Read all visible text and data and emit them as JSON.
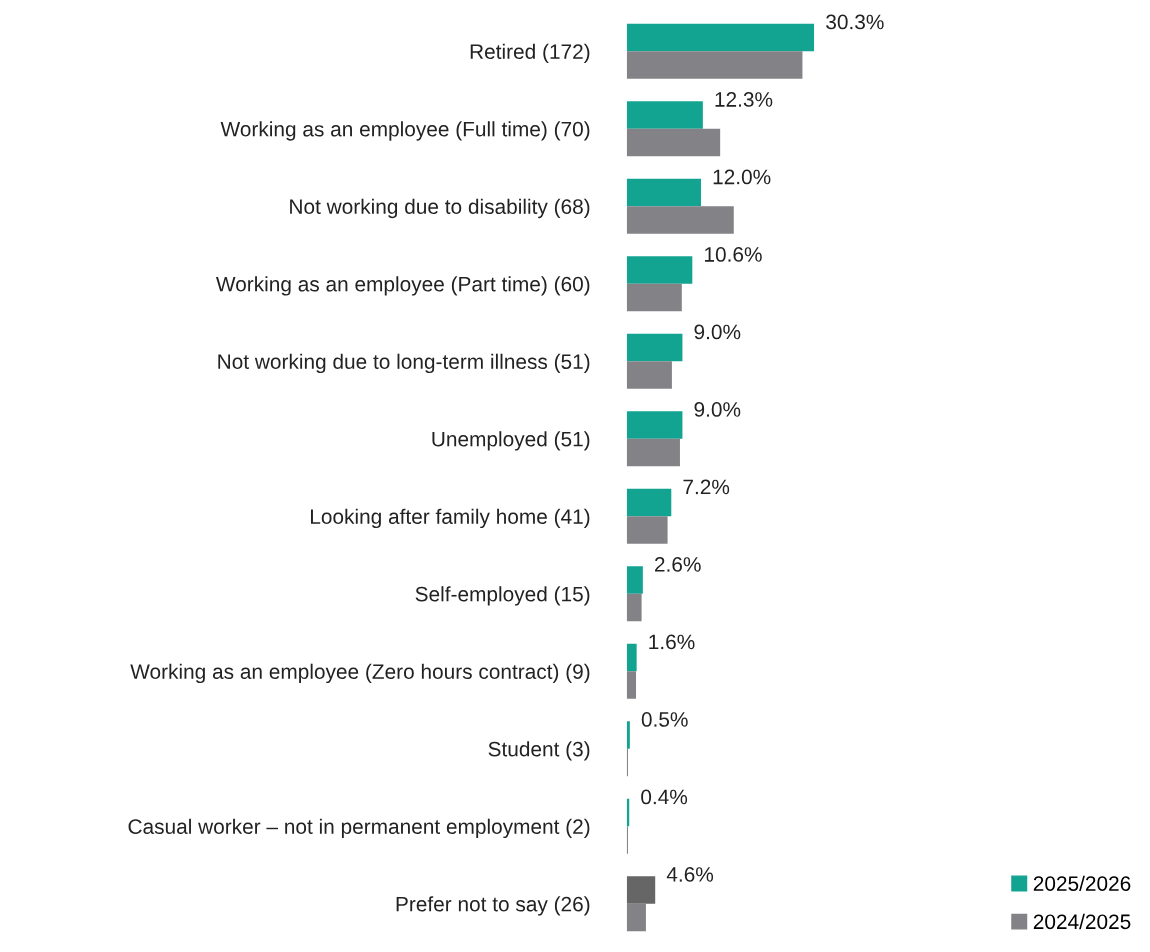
{
  "chart_data": {
    "type": "bar",
    "orientation": "horizontal",
    "categories": [
      "Retired (172)",
      "Working as an employee (Full time) (70)",
      "Not working due to disability (68)",
      "Working as an employee (Part time) (60)",
      "Not working due to long-term illness (51)",
      "Unemployed (51)",
      "Looking after family home (41)",
      "Self-employed (15)",
      "Working as an employee (Zero hours contract) (9)",
      "Student (3)",
      "Casual worker – not in permanent employment (2)",
      "Prefer not to say (26)"
    ],
    "series": [
      {
        "name": "2025/2026",
        "color": "#12a391",
        "colors": [
          "#12a391",
          "#12a391",
          "#12a391",
          "#12a391",
          "#12a391",
          "#12a391",
          "#12a391",
          "#12a391",
          "#12a391",
          "#12a391",
          "#12a391",
          "#666666"
        ],
        "values": [
          30.3,
          12.3,
          12.0,
          10.6,
          9.0,
          9.0,
          7.2,
          2.6,
          1.6,
          0.5,
          0.4,
          4.6
        ],
        "value_labels": [
          "30.3%",
          "12.3%",
          "12.0%",
          "10.6%",
          "9.0%",
          "9.0%",
          "7.2%",
          "2.6%",
          "1.6%",
          "0.5%",
          "0.4%",
          "4.6%"
        ]
      },
      {
        "name": "2024/2025",
        "color": "#838387",
        "values": [
          28.4,
          15.1,
          17.3,
          8.9,
          7.3,
          8.6,
          6.6,
          2.4,
          1.5,
          0.2,
          0.2,
          3.1
        ]
      }
    ],
    "tick_labels": "y",
    "grid": false,
    "legend": "bottom right"
  }
}
